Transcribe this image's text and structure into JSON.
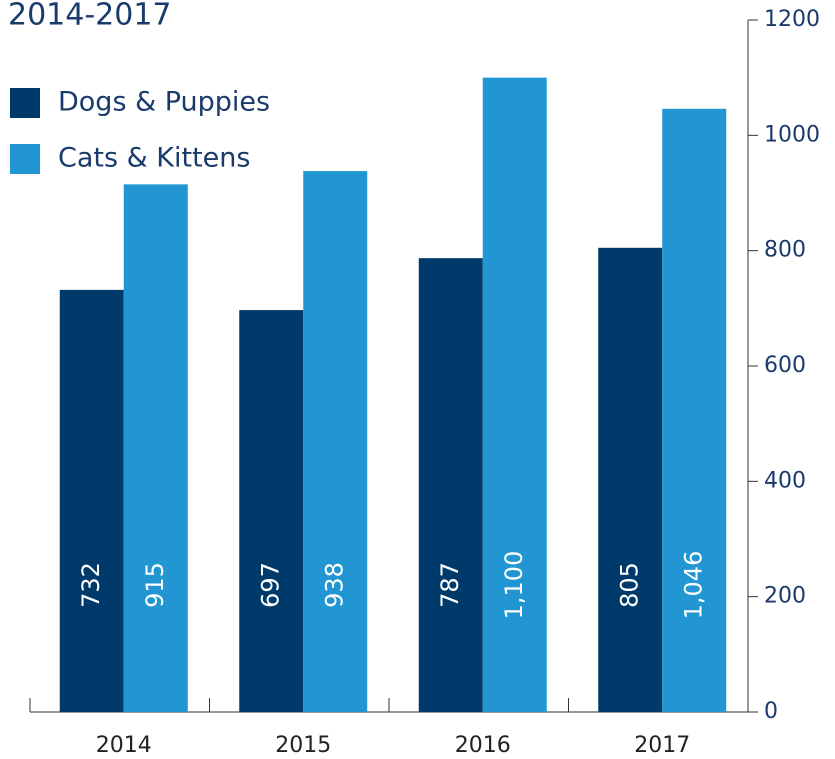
{
  "chart_data": {
    "type": "bar",
    "title": "2014-2017",
    "categories": [
      "2014",
      "2015",
      "2016",
      "2017"
    ],
    "series": [
      {
        "name": "Dogs & Puppies",
        "color": "#003a6b",
        "values": [
          732,
          697,
          787,
          805
        ],
        "value_labels": [
          "732",
          "697",
          "787",
          "805"
        ]
      },
      {
        "name": "Cats & Kittens",
        "color": "#2196d3",
        "values": [
          915,
          938,
          1100,
          1046
        ],
        "value_labels": [
          "915",
          "938",
          "1,100",
          "1,046"
        ]
      }
    ],
    "ylim": [
      0,
      1200
    ],
    "yticks": [
      0,
      200,
      400,
      600,
      800,
      1000,
      1200
    ],
    "legend": "top-left"
  }
}
